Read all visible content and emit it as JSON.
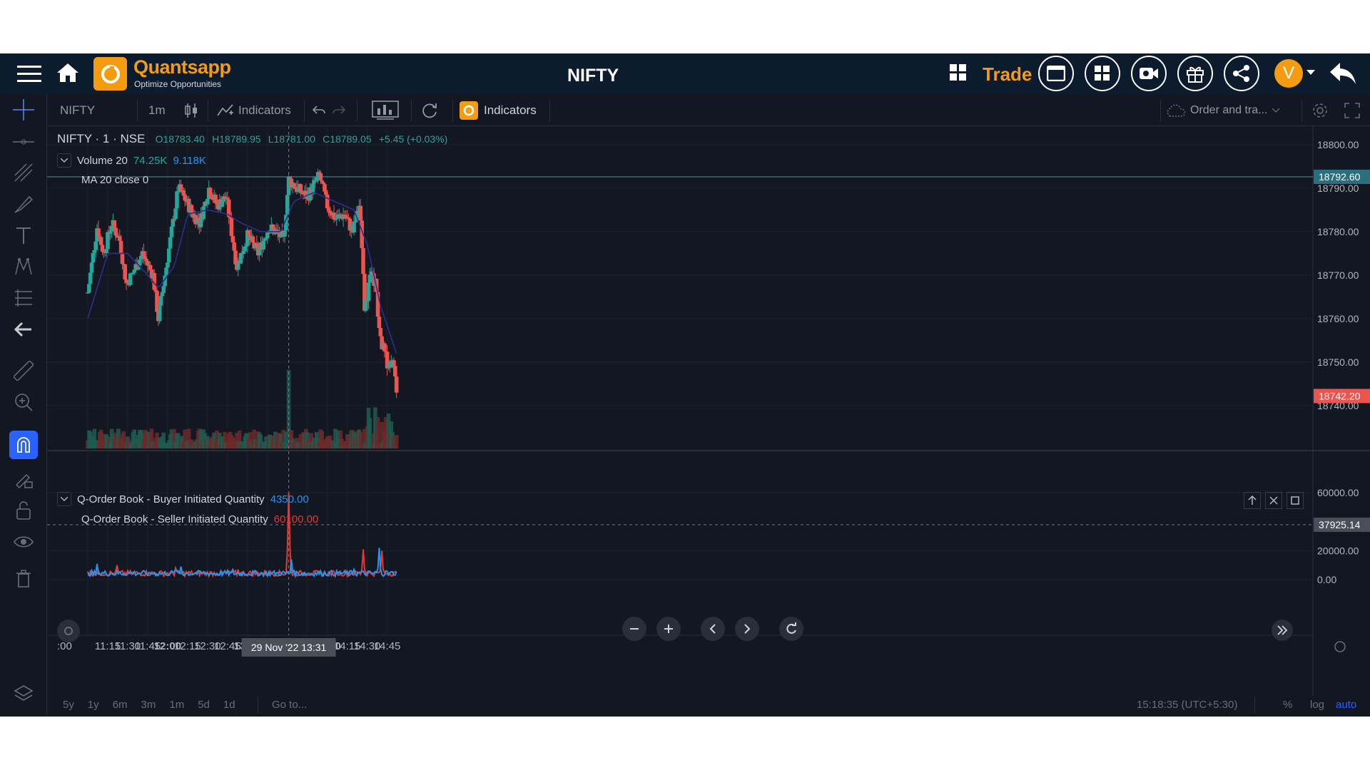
{
  "header": {
    "app_name": "Quantsapp",
    "tagline": "Optimize Opportunities",
    "title": "NIFTY",
    "trade_label": "Trade",
    "avatar_letter": "V"
  },
  "toolbar": {
    "symbol": "NIFTY",
    "interval": "1m",
    "indicators_label": "Indicators",
    "q_indicators_label": "Indicators",
    "order_panel_label": "Order and tra..."
  },
  "main_pane": {
    "symbol_line": "NIFTY · 1 · NSE",
    "ohlc": {
      "open": "O18783.40",
      "high": "H18789.95",
      "low": "L18781.00",
      "close": "C18789.05",
      "change": "+5.45 (+0.03%)"
    },
    "volume_label": "Volume 20",
    "volume_value": "74.25K",
    "volume_ma": "9.118K",
    "ma_label": "MA 20 close 0"
  },
  "sub_pane": {
    "buyer_label": "Q-Order Book - Buyer Initiated Quantity",
    "buyer_value": "4350.00",
    "seller_label": "Q-Order Book - Seller Initiated Quantity",
    "seller_value": "60100.00"
  },
  "bottom_bar": {
    "ranges": [
      "5y",
      "1y",
      "6m",
      "3m",
      "1m",
      "5d",
      "1d"
    ],
    "goto": "Go to...",
    "clock": "15:18:35 (UTC+5:30)",
    "pct": "%",
    "log": "log",
    "auto": "auto"
  },
  "colors": {
    "up": "#26a69a",
    "down": "#ef5350",
    "ma": "#2a2f8f",
    "buyer": "#2196f3",
    "seller": "#e53935",
    "accent": "#f39c12"
  },
  "chart_data": {
    "type": "line",
    "price_axis": {
      "labels": [
        "18800.00",
        "18790.00",
        "18780.00",
        "18770.00",
        "18760.00",
        "18750.00",
        "18740.00"
      ],
      "last_price": "18742.20",
      "crosshair_price": "18792.60"
    },
    "sub_axis": {
      "labels": [
        "60000.00",
        "20000.00",
        "0.00"
      ],
      "crosshair_value": "37925.14"
    },
    "time_axis": {
      "labels": [
        ":00",
        "11:15",
        "11:30",
        "11:45",
        "12:00",
        "12:15",
        "12:30",
        "12:45",
        "13:00",
        "13:15",
        "13:45",
        "14:00",
        "14:15",
        "14:30",
        "14:45"
      ],
      "crosshair_label": "29 Nov '22   13:31"
    },
    "price_path": [
      [
        "11:00",
        18766
      ],
      [
        "11:07",
        18781
      ],
      [
        "11:12",
        18775
      ],
      [
        "11:18",
        18782
      ],
      [
        "11:24",
        18778
      ],
      [
        "11:29",
        18768
      ],
      [
        "11:33",
        18770
      ],
      [
        "11:41",
        18775
      ],
      [
        "11:49",
        18770
      ],
      [
        "11:53",
        18760
      ],
      [
        "11:57",
        18768
      ],
      [
        "12:03",
        18780
      ],
      [
        "12:08",
        18790
      ],
      [
        "12:14",
        18787
      ],
      [
        "12:19",
        18784
      ],
      [
        "12:24",
        18782
      ],
      [
        "12:31",
        18790
      ],
      [
        "12:37",
        18786
      ],
      [
        "12:44",
        18788
      ],
      [
        "12:52",
        18772
      ],
      [
        "13:00",
        18779
      ],
      [
        "13:08",
        18775
      ],
      [
        "13:16",
        18781
      ],
      [
        "13:21",
        18780
      ],
      [
        "13:27",
        18778
      ],
      [
        "13:31",
        18792
      ],
      [
        "13:37",
        18790
      ],
      [
        "13:45",
        18788
      ],
      [
        "13:54",
        18793
      ],
      [
        "14:00",
        18786
      ],
      [
        "14:06",
        18783
      ],
      [
        "14:13",
        18784
      ],
      [
        "14:19",
        18780
      ],
      [
        "14:24",
        18786
      ],
      [
        "14:26",
        18777
      ],
      [
        "14:28",
        18761
      ],
      [
        "14:32",
        18770
      ],
      [
        "14:36",
        18768
      ],
      [
        "14:40",
        18755
      ],
      [
        "14:45",
        18750
      ],
      [
        "14:50",
        18749
      ],
      [
        "14:52",
        18742
      ]
    ],
    "ma_path": [
      [
        "11:00",
        18760
      ],
      [
        "11:15",
        18775
      ],
      [
        "11:30",
        18775
      ],
      [
        "11:45",
        18770
      ],
      [
        "11:53",
        18767
      ],
      [
        "12:05",
        18772
      ],
      [
        "12:15",
        18784
      ],
      [
        "12:30",
        18785
      ],
      [
        "12:45",
        18784
      ],
      [
        "12:55",
        18782
      ],
      [
        "13:10",
        18780
      ],
      [
        "13:25",
        18780
      ],
      [
        "13:35",
        18787
      ],
      [
        "13:50",
        18789
      ],
      [
        "14:05",
        18787
      ],
      [
        "14:20",
        18785
      ],
      [
        "14:30",
        18777
      ],
      [
        "14:40",
        18763
      ],
      [
        "14:52",
        18752
      ]
    ],
    "buyer_peaks": [
      [
        "11:07",
        11000
      ],
      [
        "11:34",
        4000
      ],
      [
        "11:46",
        5000
      ],
      [
        "12:06",
        7000
      ],
      [
        "12:10",
        9000
      ],
      [
        "12:49",
        7000
      ],
      [
        "13:33",
        14000
      ],
      [
        "14:20",
        7000
      ],
      [
        "14:39",
        22000
      ],
      [
        "14:44",
        6000
      ]
    ],
    "seller_peaks": [
      [
        "11:22",
        10000
      ],
      [
        "12:06",
        8000
      ],
      [
        "12:53",
        7000
      ],
      [
        "13:31",
        60100
      ],
      [
        "14:27",
        21000
      ],
      [
        "14:41",
        20000
      ],
      [
        "14:50",
        5000
      ]
    ],
    "annotation": "spikes at 13:31 (seller 60100) and 14:39 (buyer)"
  }
}
